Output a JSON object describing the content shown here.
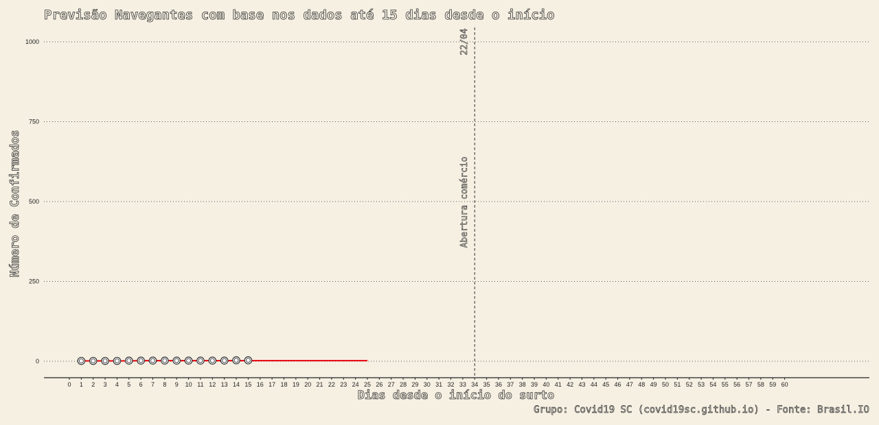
{
  "chart_data": {
    "type": "line",
    "title": "Previsão Navegantes com base nos dados até 15 dias desde o início",
    "xlabel": "Dias desde o início do surto",
    "ylabel": "Número de Confirmados",
    "caption": "Grupo: Covid19 SC (covid19sc.github.io) - Fonte: Brasil.IO",
    "xlim": [
      0,
      60
    ],
    "ylim": [
      0,
      1000
    ],
    "x_ticks": [
      0,
      1,
      2,
      3,
      4,
      5,
      6,
      7,
      8,
      9,
      10,
      11,
      12,
      13,
      14,
      15,
      16,
      17,
      18,
      19,
      20,
      21,
      22,
      23,
      24,
      25,
      26,
      27,
      28,
      29,
      30,
      31,
      32,
      33,
      34,
      35,
      36,
      37,
      38,
      39,
      40,
      41,
      42,
      43,
      44,
      45,
      46,
      47,
      48,
      49,
      50,
      51,
      52,
      53,
      54,
      55,
      56,
      57,
      58,
      59,
      60
    ],
    "y_ticks": [
      0,
      250,
      500,
      750,
      1000
    ],
    "grid": "horizontal-dotted",
    "series": [
      {
        "kind": "observed-points",
        "color": "#333333",
        "x": [
          1,
          2,
          3,
          4,
          5,
          6,
          7,
          8,
          9,
          10,
          11,
          12,
          13,
          14,
          15
        ],
        "y": [
          1,
          1,
          1,
          1,
          2,
          2,
          2,
          2,
          2,
          2,
          2,
          2,
          2,
          3,
          3
        ]
      },
      {
        "kind": "forecast-line",
        "color": "#e8000b",
        "x": [
          1,
          2,
          3,
          4,
          5,
          6,
          7,
          8,
          9,
          10,
          11,
          12,
          13,
          14,
          15,
          16,
          17,
          18,
          19,
          20,
          21,
          22,
          23,
          24,
          25
        ],
        "y": [
          1,
          1,
          1,
          1,
          1,
          2,
          2,
          2,
          2,
          2,
          2,
          2,
          2,
          2,
          2,
          2,
          2,
          2,
          2,
          2,
          2,
          2,
          2,
          2,
          2
        ]
      }
    ],
    "vline": {
      "x": 34,
      "date_label": "22/04",
      "event_label": "Abertura comércio"
    }
  }
}
